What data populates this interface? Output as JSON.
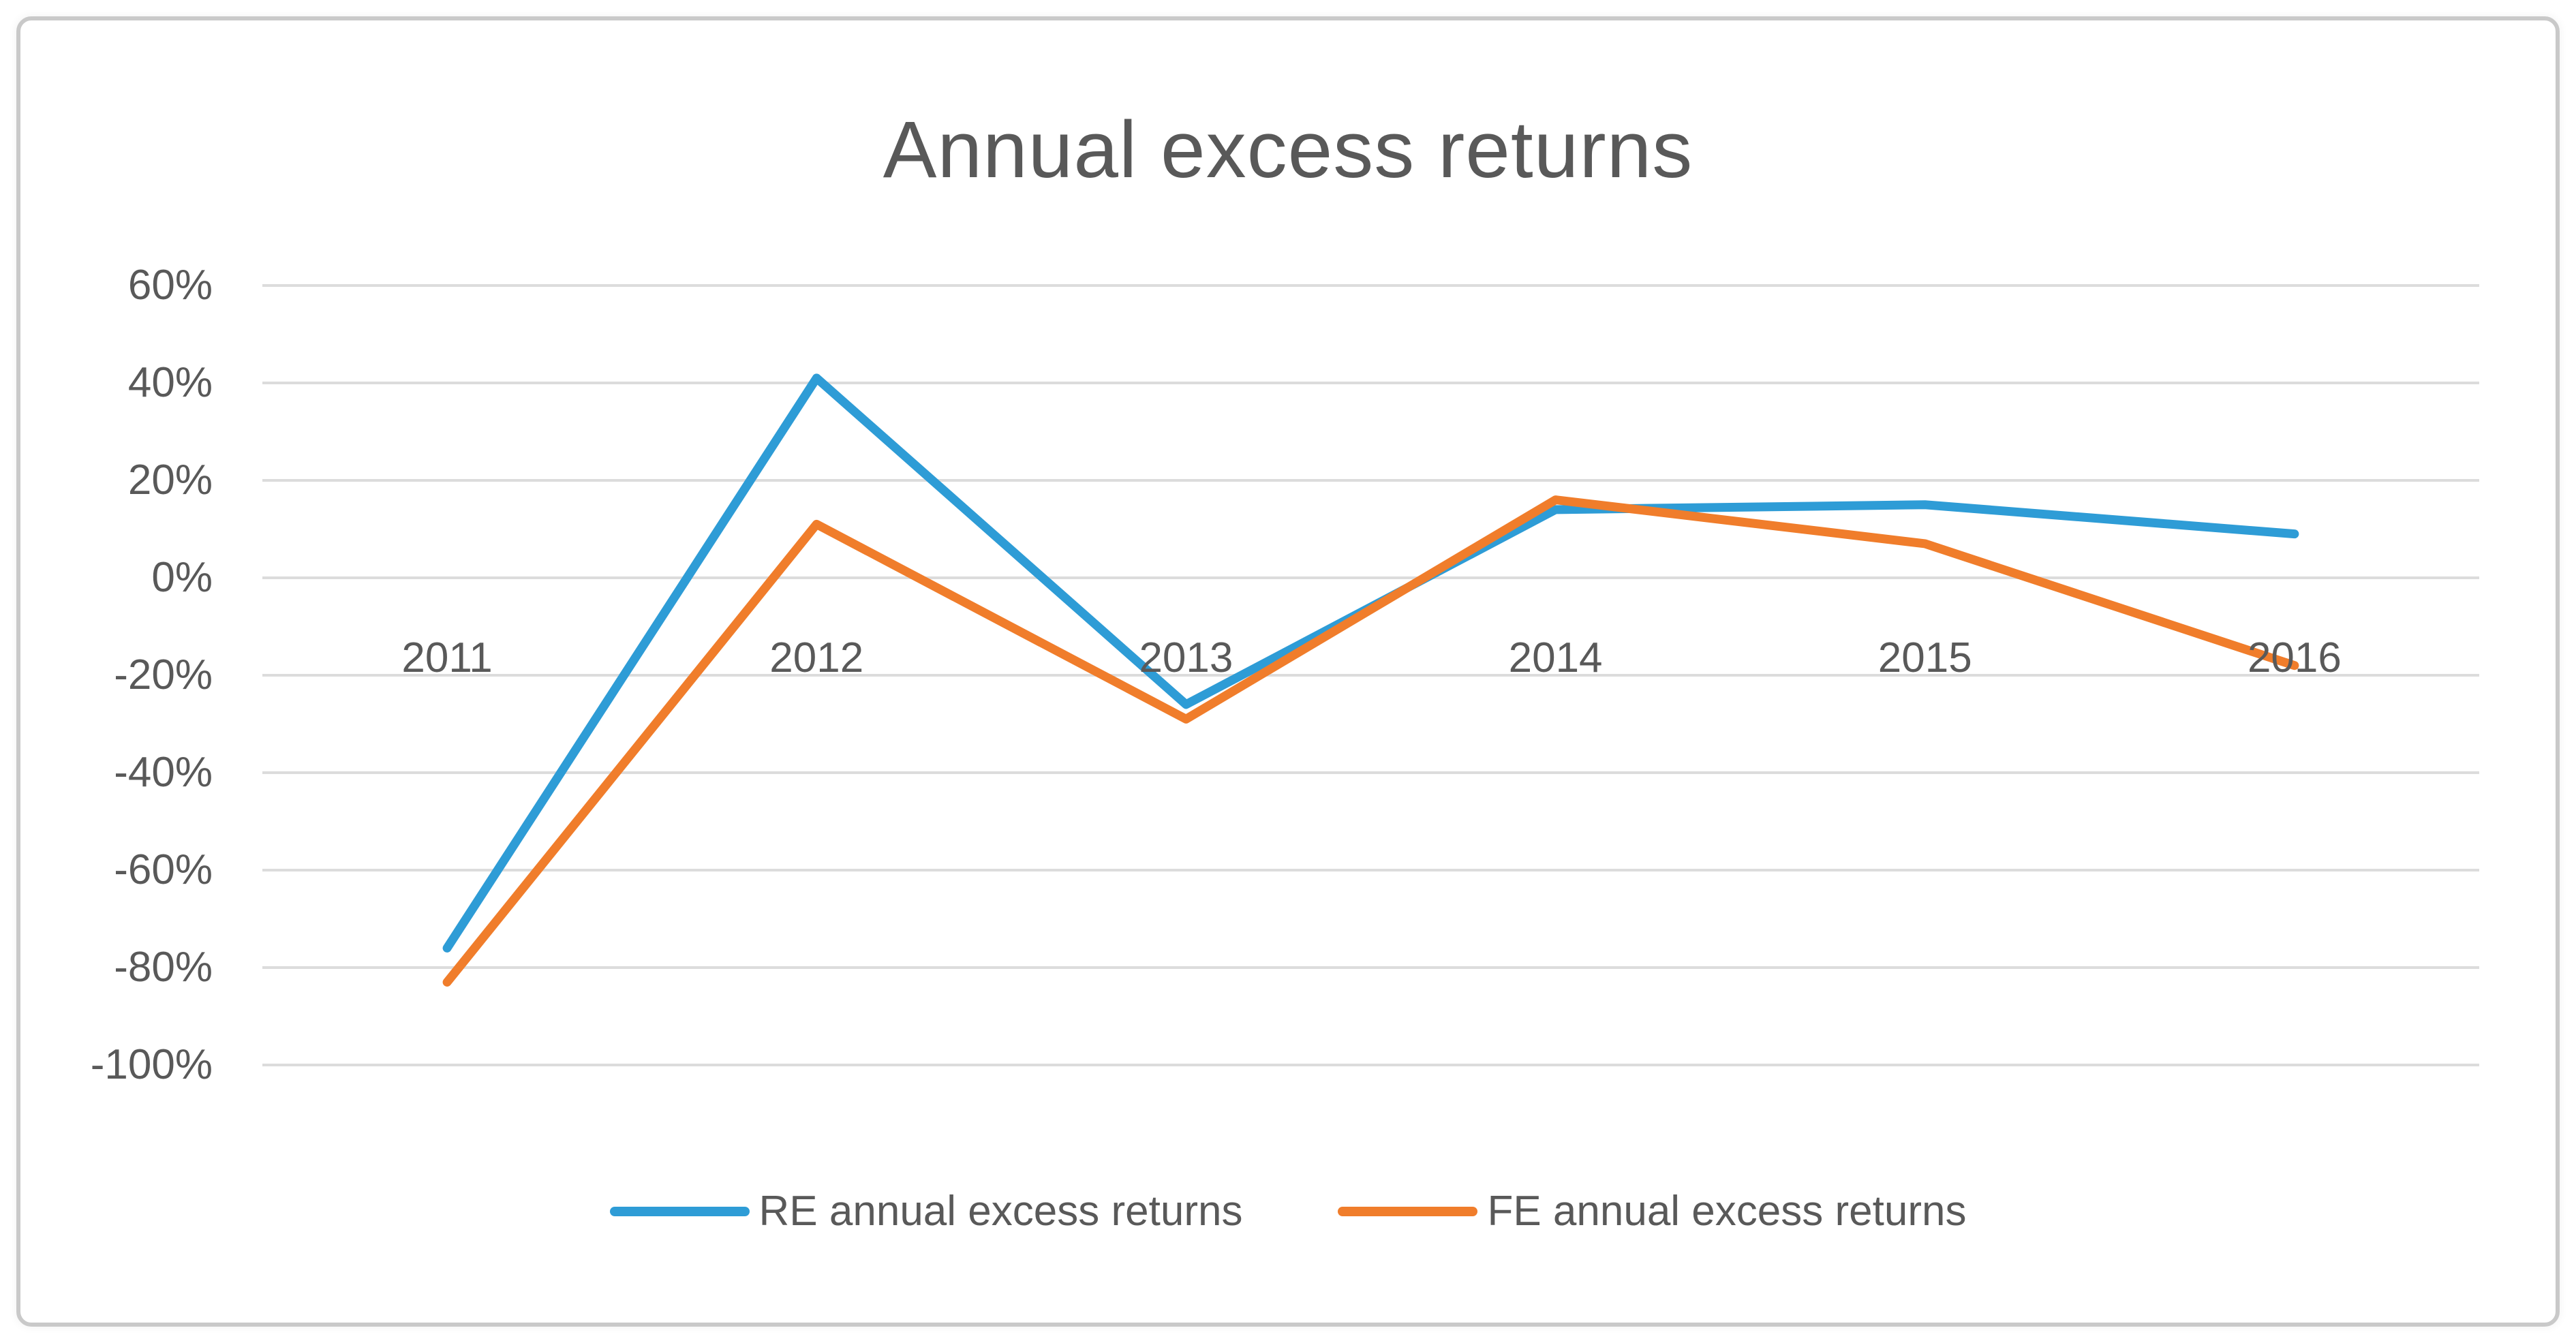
{
  "window": {
    "background_color": "#ffffff",
    "frame_border_color": "#c9c9c9"
  },
  "chart": {
    "title": "Annual excess returns",
    "title_color": "#595959",
    "axis_text_color": "#595959",
    "gridline_color": "#dcdcdc"
  },
  "chart_data": {
    "type": "line",
    "title": "Annual excess returns",
    "categories": [
      "2011",
      "2012",
      "2013",
      "2014",
      "2015",
      "2016"
    ],
    "series": [
      {
        "name": "RE annual excess returns",
        "color": "#2e9cd6",
        "values": [
          -76,
          41,
          -26,
          14,
          15,
          9
        ]
      },
      {
        "name": "FE annual excess returns",
        "color": "#f07d2b",
        "values": [
          -83,
          11,
          -29,
          16,
          7,
          -18
        ]
      }
    ],
    "units": "percent",
    "xlabel": "",
    "ylabel": "",
    "y_ticks": [
      {
        "value": 60,
        "label": "60%"
      },
      {
        "value": 40,
        "label": "40%"
      },
      {
        "value": 20,
        "label": "20%"
      },
      {
        "value": 0,
        "label": "0%"
      },
      {
        "value": -20,
        "label": "-20%"
      },
      {
        "value": -40,
        "label": "-40%"
      },
      {
        "value": -60,
        "label": "-60%"
      },
      {
        "value": -80,
        "label": "-80%"
      },
      {
        "value": -100,
        "label": "-100%"
      }
    ],
    "ylim": [
      -100,
      60
    ],
    "grid": true,
    "legend_position": "bottom"
  }
}
